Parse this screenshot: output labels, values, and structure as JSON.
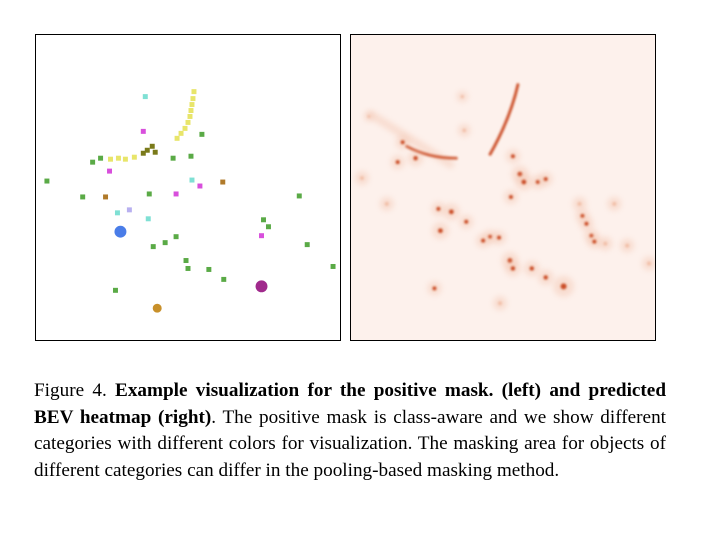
{
  "caption": {
    "label": "Figure 4.",
    "bold_text": "Example visualization for the positive mask. (left) and predicted BEV heatmap (right)",
    "body_text": ". The positive mask is class-aware and we show different categories with different colors for visualization. The masking area for objects of different categories can differ in the pooling-based masking method."
  },
  "colors": {
    "car": "#5aaa46",
    "pedestrian": "#e8e56a",
    "cyan": "#7fe0d4",
    "magenta": "#d84fdc",
    "olive": "#7a7a1a",
    "brown": "#b07a2a",
    "lavender": "#b8b0f0",
    "blue": "#4a7de8",
    "purple": "#a02a8c",
    "orange": "#c8902a",
    "heat_strong": "#c8441c",
    "heat_weak": "#f0b89e"
  }
}
